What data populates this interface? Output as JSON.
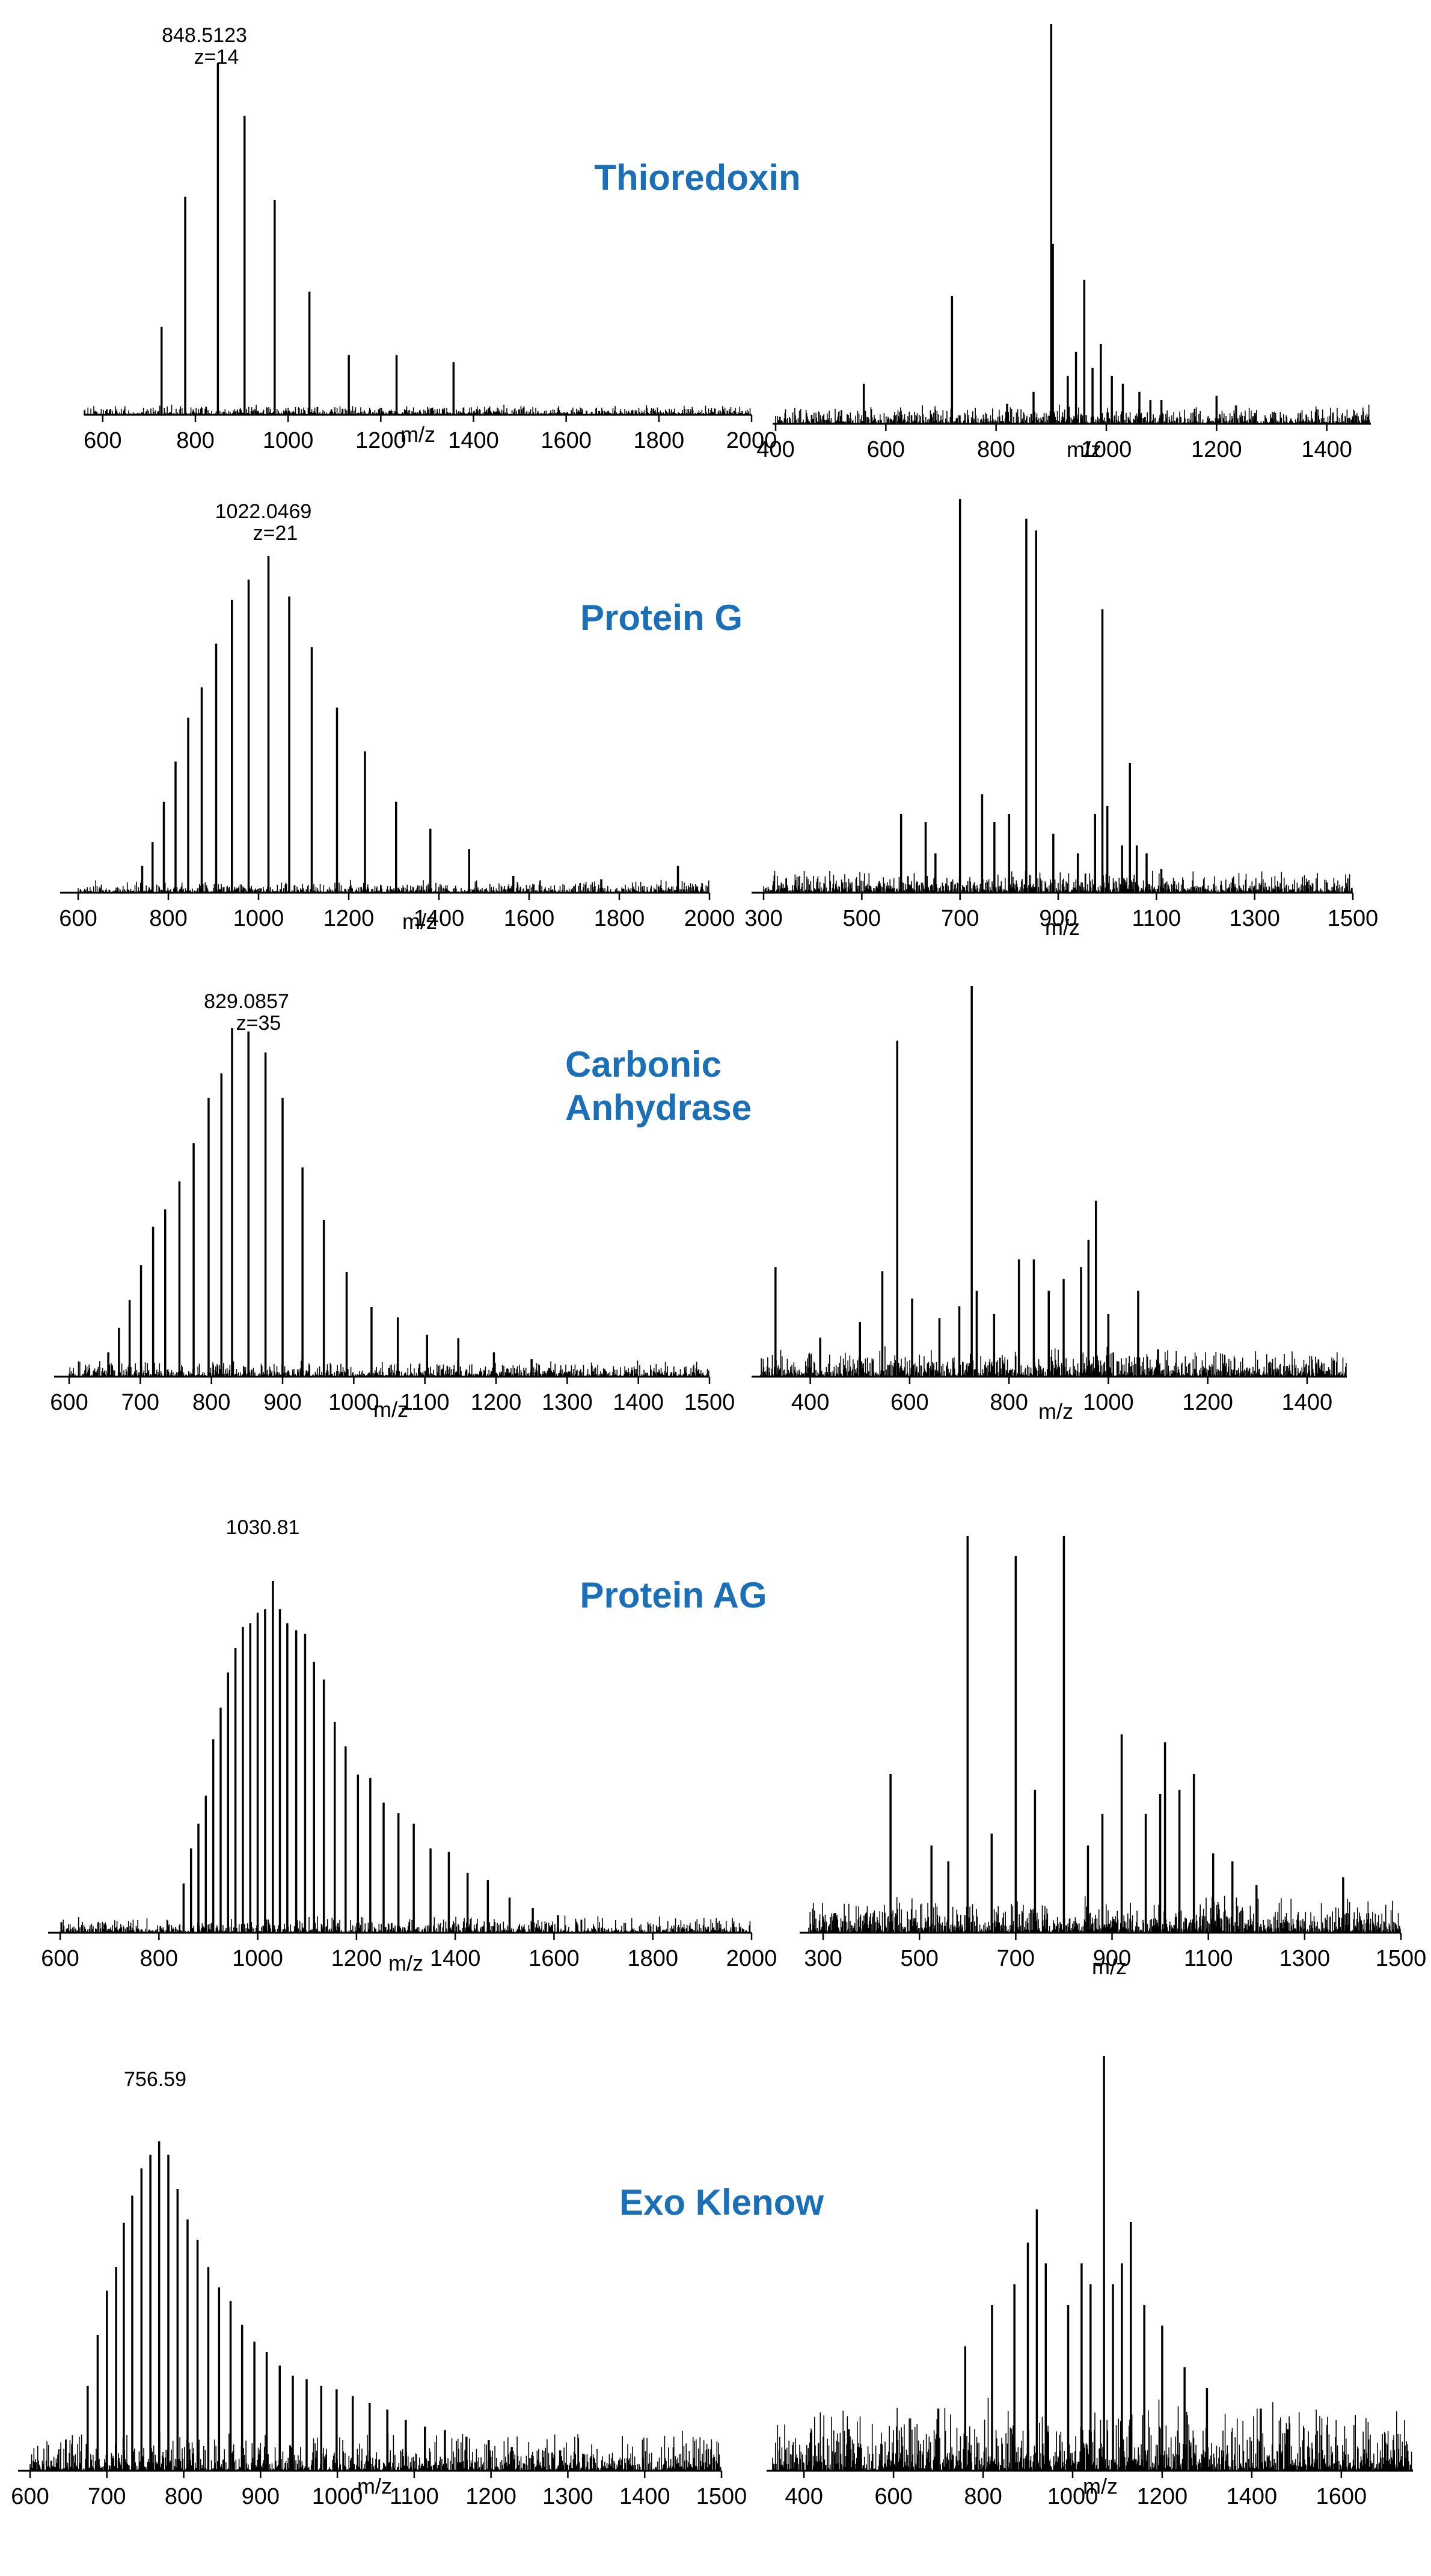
{
  "chart_data": [
    {
      "type": "line",
      "protein": "Thioredoxin",
      "panel": "left",
      "xlabel": "m/z",
      "xlim": [
        560,
        2000
      ],
      "ticks": [
        600,
        800,
        1000,
        1200,
        1400,
        1600,
        1800,
        2000
      ],
      "peaks": [
        [
          727,
          0.25
        ],
        [
          778,
          0.62
        ],
        [
          848.5,
          1.0
        ],
        [
          906,
          0.85
        ],
        [
          971,
          0.61
        ],
        [
          1046,
          0.35
        ],
        [
          1131,
          0.17
        ],
        [
          1234,
          0.17
        ],
        [
          1357,
          0.15
        ],
        [
          1508,
          0.02
        ]
      ],
      "annotation": {
        "mz": "848.5123",
        "charge": "z=14"
      },
      "noise": 0.03
    },
    {
      "type": "line",
      "protein": "Thioredoxin",
      "panel": "right",
      "xlabel": "m/z",
      "xlim": [
        400,
        1480
      ],
      "ticks": [
        400,
        600,
        800,
        1000,
        1200,
        1400
      ],
      "peaks": [
        [
          560,
          0.1
        ],
        [
          720,
          0.32
        ],
        [
          820,
          0.05
        ],
        [
          868,
          0.08
        ],
        [
          900,
          1.0
        ],
        [
          903,
          0.45
        ],
        [
          930,
          0.12
        ],
        [
          945,
          0.18
        ],
        [
          960,
          0.36
        ],
        [
          975,
          0.14
        ],
        [
          990,
          0.2
        ],
        [
          1010,
          0.12
        ],
        [
          1030,
          0.1
        ],
        [
          1060,
          0.08
        ],
        [
          1080,
          0.06
        ],
        [
          1100,
          0.06
        ],
        [
          1200,
          0.07
        ]
      ],
      "annotation": null,
      "noise": 0.05
    },
    {
      "type": "line",
      "protein": "Protein G",
      "panel": "left",
      "xlabel": "m/z",
      "xlim": [
        600,
        2000
      ],
      "ticks": [
        600,
        800,
        1000,
        1200,
        1400,
        1600,
        1800,
        2000
      ],
      "peaks": [
        [
          742,
          0.08
        ],
        [
          765,
          0.15
        ],
        [
          790,
          0.27
        ],
        [
          816,
          0.39
        ],
        [
          844,
          0.52
        ],
        [
          874,
          0.61
        ],
        [
          906,
          0.74
        ],
        [
          941,
          0.87
        ],
        [
          978,
          0.93
        ],
        [
          1022,
          1.0
        ],
        [
          1068,
          0.88
        ],
        [
          1118,
          0.73
        ],
        [
          1174,
          0.55
        ],
        [
          1236,
          0.42
        ],
        [
          1305,
          0.27
        ],
        [
          1381,
          0.19
        ],
        [
          1467,
          0.13
        ],
        [
          1565,
          0.05
        ],
        [
          1760,
          0.04
        ],
        [
          1930,
          0.08
        ]
      ],
      "annotation": {
        "mz": "1022.0469",
        "charge": "z=21"
      },
      "noise": 0.04
    },
    {
      "type": "line",
      "protein": "Protein G",
      "panel": "right",
      "xlabel": "m/z",
      "xlim": [
        300,
        1500
      ],
      "ticks": [
        300,
        500,
        700,
        900,
        1100,
        1300,
        1500
      ],
      "peaks": [
        [
          580,
          0.2
        ],
        [
          630,
          0.18
        ],
        [
          650,
          0.1
        ],
        [
          700,
          1.0
        ],
        [
          745,
          0.25
        ],
        [
          770,
          0.18
        ],
        [
          800,
          0.2
        ],
        [
          835,
          0.95
        ],
        [
          855,
          0.92
        ],
        [
          890,
          0.15
        ],
        [
          940,
          0.1
        ],
        [
          975,
          0.2
        ],
        [
          990,
          0.72
        ],
        [
          1000,
          0.22
        ],
        [
          1030,
          0.12
        ],
        [
          1046,
          0.33
        ],
        [
          1060,
          0.12
        ],
        [
          1080,
          0.1
        ],
        [
          1110,
          0.06
        ]
      ],
      "annotation": null,
      "noise": 0.06
    },
    {
      "type": "line",
      "protein": "Carbonic Anhydrase",
      "panel": "left",
      "xlabel": "m/z",
      "xlim": [
        600,
        1500
      ],
      "ticks": [
        600,
        700,
        800,
        900,
        1000,
        1100,
        1200,
        1300,
        1400,
        1500
      ],
      "peaks": [
        [
          655,
          0.07
        ],
        [
          670,
          0.14
        ],
        [
          685,
          0.22
        ],
        [
          701,
          0.32
        ],
        [
          718,
          0.43
        ],
        [
          735,
          0.48
        ],
        [
          755,
          0.56
        ],
        [
          775,
          0.67
        ],
        [
          796,
          0.8
        ],
        [
          814,
          0.87
        ],
        [
          829,
          1.0
        ],
        [
          852,
          0.99
        ],
        [
          876,
          0.93
        ],
        [
          900,
          0.8
        ],
        [
          928,
          0.6
        ],
        [
          958,
          0.45
        ],
        [
          990,
          0.3
        ],
        [
          1025,
          0.2
        ],
        [
          1062,
          0.17
        ],
        [
          1103,
          0.12
        ],
        [
          1147,
          0.11
        ],
        [
          1197,
          0.07
        ],
        [
          1250,
          0.05
        ]
      ],
      "annotation": {
        "mz": "829.0857",
        "charge": "z=35"
      },
      "noise": 0.05
    },
    {
      "type": "line",
      "protein": "Carbonic Anhydrase",
      "panel": "right",
      "xlabel": "m/z",
      "xlim": [
        300,
        1480
      ],
      "ticks": [
        400,
        600,
        800,
        1000,
        1200,
        1400
      ],
      "peaks": [
        [
          330,
          0.28
        ],
        [
          420,
          0.1
        ],
        [
          500,
          0.14
        ],
        [
          545,
          0.27
        ],
        [
          575,
          0.86
        ],
        [
          605,
          0.2
        ],
        [
          660,
          0.15
        ],
        [
          700,
          0.18
        ],
        [
          725,
          1.0
        ],
        [
          735,
          0.22
        ],
        [
          770,
          0.16
        ],
        [
          820,
          0.3
        ],
        [
          850,
          0.3
        ],
        [
          880,
          0.22
        ],
        [
          910,
          0.25
        ],
        [
          945,
          0.28
        ],
        [
          960,
          0.35
        ],
        [
          975,
          0.45
        ],
        [
          1000,
          0.16
        ],
        [
          1060,
          0.22
        ],
        [
          1100,
          0.07
        ]
      ],
      "annotation": null,
      "noise": 0.08
    },
    {
      "type": "line",
      "protein": "Protein AG",
      "panel": "left",
      "xlabel": "m/z",
      "xlim": [
        600,
        2000
      ],
      "ticks": [
        600,
        800,
        1000,
        1200,
        1400,
        1600,
        1800,
        2000
      ],
      "peaks": [
        [
          850,
          0.14
        ],
        [
          865,
          0.24
        ],
        [
          880,
          0.31
        ],
        [
          895,
          0.39
        ],
        [
          910,
          0.55
        ],
        [
          925,
          0.64
        ],
        [
          940,
          0.74
        ],
        [
          955,
          0.81
        ],
        [
          970,
          0.87
        ],
        [
          985,
          0.88
        ],
        [
          1000,
          0.91
        ],
        [
          1015,
          0.92
        ],
        [
          1030.8,
          1.0
        ],
        [
          1045,
          0.92
        ],
        [
          1060,
          0.88
        ],
        [
          1078,
          0.86
        ],
        [
          1096,
          0.85
        ],
        [
          1114,
          0.77
        ],
        [
          1134,
          0.72
        ],
        [
          1156,
          0.6
        ],
        [
          1178,
          0.53
        ],
        [
          1203,
          0.45
        ],
        [
          1228,
          0.44
        ],
        [
          1255,
          0.37
        ],
        [
          1285,
          0.34
        ],
        [
          1316,
          0.31
        ],
        [
          1350,
          0.24
        ],
        [
          1387,
          0.23
        ],
        [
          1425,
          0.17
        ],
        [
          1466,
          0.15
        ],
        [
          1510,
          0.1
        ],
        [
          1557,
          0.07
        ],
        [
          1608,
          0.05
        ]
      ],
      "annotation": {
        "mz": "1030.81",
        "charge": ""
      },
      "noise": 0.05
    },
    {
      "type": "line",
      "protein": "Protein AG",
      "panel": "right",
      "xlabel": "m/z",
      "xlim": [
        270,
        1500
      ],
      "ticks": [
        300,
        500,
        700,
        900,
        1100,
        1300,
        1500
      ],
      "peaks": [
        [
          325,
          0.05
        ],
        [
          440,
          0.4
        ],
        [
          525,
          0.22
        ],
        [
          560,
          0.18
        ],
        [
          600,
          1.0
        ],
        [
          650,
          0.25
        ],
        [
          700,
          0.95
        ],
        [
          740,
          0.36
        ],
        [
          800,
          1.0
        ],
        [
          850,
          0.22
        ],
        [
          880,
          0.3
        ],
        [
          920,
          0.5
        ],
        [
          970,
          0.3
        ],
        [
          1000,
          0.35
        ],
        [
          1010,
          0.48
        ],
        [
          1040,
          0.36
        ],
        [
          1070,
          0.4
        ],
        [
          1110,
          0.2
        ],
        [
          1150,
          0.18
        ],
        [
          1200,
          0.12
        ],
        [
          1380,
          0.14
        ]
      ],
      "annotation": null,
      "noise": 0.1
    },
    {
      "type": "line",
      "protein": "Exo Klenow",
      "panel": "left",
      "xlabel": "m/z",
      "xlim": [
        600,
        1500
      ],
      "ticks": [
        600,
        700,
        800,
        900,
        1000,
        1100,
        1200,
        1300,
        1400,
        1500
      ],
      "peaks": [
        [
          675,
          0.25
        ],
        [
          688,
          0.4
        ],
        [
          700,
          0.53
        ],
        [
          712,
          0.6
        ],
        [
          722,
          0.73
        ],
        [
          733,
          0.81
        ],
        [
          745,
          0.89
        ],
        [
          756.6,
          0.93
        ],
        [
          768,
          0.97
        ],
        [
          780,
          0.93
        ],
        [
          792,
          0.83
        ],
        [
          805,
          0.74
        ],
        [
          818,
          0.68
        ],
        [
          832,
          0.6
        ],
        [
          846,
          0.54
        ],
        [
          861,
          0.5
        ],
        [
          876,
          0.43
        ],
        [
          892,
          0.38
        ],
        [
          908,
          0.35
        ],
        [
          925,
          0.31
        ],
        [
          942,
          0.28
        ],
        [
          960,
          0.27
        ],
        [
          979,
          0.25
        ],
        [
          999,
          0.24
        ],
        [
          1020,
          0.22
        ],
        [
          1042,
          0.2
        ],
        [
          1065,
          0.18
        ],
        [
          1089,
          0.15
        ],
        [
          1114,
          0.13
        ],
        [
          1140,
          0.12
        ],
        [
          1168,
          0.1
        ],
        [
          1197,
          0.09
        ],
        [
          1227,
          0.07
        ],
        [
          1290,
          0.06
        ],
        [
          1320,
          0.05
        ]
      ],
      "annotation": {
        "mz": "756.59",
        "charge": ""
      },
      "noise": 0.12
    },
    {
      "type": "line",
      "protein": "Exo Klenow",
      "panel": "right",
      "xlabel": "m/z",
      "xlim": [
        330,
        1760
      ],
      "ticks": [
        400,
        600,
        800,
        1000,
        1200,
        1400,
        1600
      ],
      "peaks": [
        [
          500,
          0.1
        ],
        [
          700,
          0.15
        ],
        [
          760,
          0.3
        ],
        [
          820,
          0.4
        ],
        [
          870,
          0.45
        ],
        [
          900,
          0.55
        ],
        [
          920,
          0.63
        ],
        [
          940,
          0.5
        ],
        [
          990,
          0.4
        ],
        [
          1020,
          0.5
        ],
        [
          1040,
          0.45
        ],
        [
          1070,
          1.0
        ],
        [
          1090,
          0.45
        ],
        [
          1110,
          0.5
        ],
        [
          1130,
          0.6
        ],
        [
          1160,
          0.4
        ],
        [
          1200,
          0.35
        ],
        [
          1250,
          0.25
        ],
        [
          1300,
          0.2
        ],
        [
          1420,
          0.15
        ],
        [
          1480,
          0.1
        ]
      ],
      "annotation": null,
      "noise": 0.18
    }
  ]
}
